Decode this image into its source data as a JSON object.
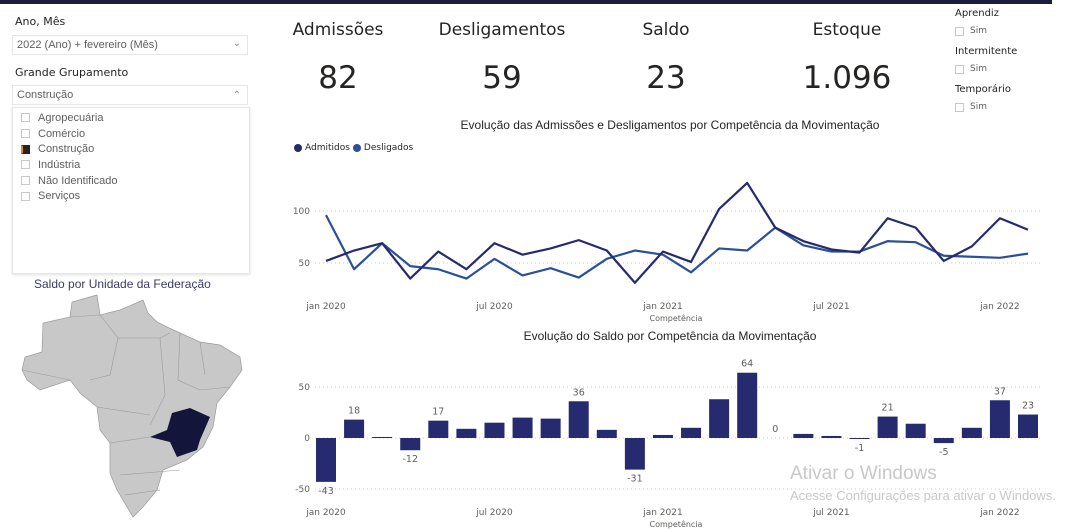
{
  "filters": {
    "period_label": "Ano, Mês",
    "period_value": "2022 (Ano) + fevereiro (Mês)",
    "group_label": "Grande Grupamento",
    "group_value": "Construção",
    "group_options": [
      {
        "label": "Agropecuária",
        "checked": false
      },
      {
        "label": "Comércio",
        "checked": false
      },
      {
        "label": "Construção",
        "checked": true
      },
      {
        "label": "Indústria",
        "checked": false
      },
      {
        "label": "Não Identificado",
        "checked": false
      },
      {
        "label": "Serviços",
        "checked": false
      }
    ]
  },
  "kpis": [
    {
      "label": "Admissões",
      "value": "82"
    },
    {
      "label": "Desligamentos",
      "value": "59"
    },
    {
      "label": "Saldo",
      "value": "23"
    },
    {
      "label": "Estoque",
      "value": "1.096"
    }
  ],
  "toggles": [
    {
      "label": "Aprendiz",
      "option": "Sim"
    },
    {
      "label": "Intermitente",
      "option": "Sim"
    },
    {
      "label": "Temporário",
      "option": "Sim"
    }
  ],
  "map": {
    "title": "Saldo por Unidade da Federação",
    "highlight_color": "#13163a",
    "base_color": "#c8c8c8"
  },
  "watermark": {
    "line1": "Ativar o Windows",
    "line2": "Acesse Configurações para ativar o Windows."
  },
  "chart_data": [
    {
      "type": "line",
      "title": "Evolução das Admissões e Desligamentos por Competência da Movimentação",
      "xlabel": "Competência",
      "ylabel": "",
      "x_ticks": [
        "jan 2020",
        "jul 2020",
        "jan 2021",
        "jul 2021",
        "jan 2022"
      ],
      "y_ticks": [
        50,
        100
      ],
      "ylim": [
        20,
        135
      ],
      "legend": "top-left",
      "grid": true,
      "series": [
        {
          "name": "Admitidos",
          "color": "#262a6e",
          "values": [
            52,
            62,
            69,
            35,
            61,
            44,
            69,
            58,
            64,
            72,
            62,
            31,
            61,
            51,
            102,
            127,
            84,
            71,
            63,
            60,
            93,
            84,
            52,
            66,
            93,
            82
          ]
        },
        {
          "name": "Desligados",
          "color": "#2b4f98",
          "values": [
            96,
            44,
            69,
            47,
            44,
            35,
            54,
            38,
            45,
            36,
            54,
            62,
            58,
            41,
            64,
            62,
            84,
            67,
            61,
            61,
            71,
            70,
            57,
            56,
            55,
            59
          ]
        }
      ]
    },
    {
      "type": "bar",
      "title": "Evolução do Saldo por Competência da Movimentação",
      "xlabel": "Competência",
      "ylabel": "",
      "x_ticks": [
        "jan 2020",
        "jul 2020",
        "jan 2021",
        "jul 2021",
        "jan 2022"
      ],
      "y_ticks": [
        -50,
        0,
        50
      ],
      "ylim": [
        -55,
        70
      ],
      "grid": true,
      "color": "#262a6e",
      "values": [
        -43,
        18,
        1,
        -12,
        17,
        9,
        15,
        20,
        19,
        36,
        8,
        -31,
        3,
        10,
        38,
        64,
        0,
        4,
        2,
        -1,
        21,
        14,
        -5,
        10,
        37,
        23
      ],
      "labeled_indices": [
        0,
        1,
        3,
        4,
        9,
        11,
        15,
        16,
        19,
        20,
        22,
        24,
        25
      ]
    }
  ]
}
